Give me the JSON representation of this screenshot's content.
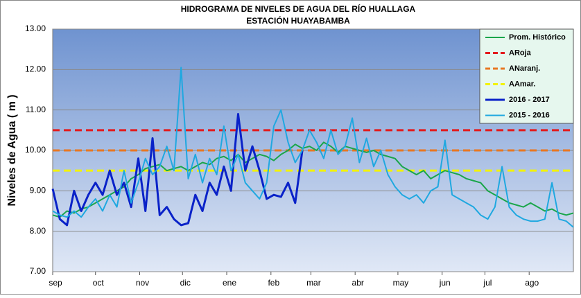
{
  "chart_data": {
    "type": "line",
    "title": "HIDROGRAMA DE NIVELES DE AGUA  DEL RÍO HUALLAGA",
    "subtitle": "ESTACIÓN HUAYABAMBA",
    "y_label": "Niveles de Agua  ( m )",
    "xlim": [
      0,
      365
    ],
    "xticks": [
      {
        "value": 0,
        "label": "sep"
      },
      {
        "value": 30,
        "label": "oct"
      },
      {
        "value": 61,
        "label": "nov"
      },
      {
        "value": 91,
        "label": "dic"
      },
      {
        "value": 122,
        "label": "ene"
      },
      {
        "value": 153,
        "label": "feb"
      },
      {
        "value": 181,
        "label": "mar"
      },
      {
        "value": 212,
        "label": "abr"
      },
      {
        "value": 242,
        "label": "may"
      },
      {
        "value": 273,
        "label": "jun"
      },
      {
        "value": 303,
        "label": "jul"
      },
      {
        "value": 334,
        "label": "ago"
      }
    ],
    "ylim": [
      7,
      13
    ],
    "yticks": [
      {
        "value": 7,
        "label": "7.00"
      },
      {
        "value": 8,
        "label": "8.00"
      },
      {
        "value": 9,
        "label": "9.00"
      },
      {
        "value": 10,
        "label": "10.00"
      },
      {
        "value": 11,
        "label": "11.00"
      },
      {
        "value": 12,
        "label": "12.00"
      },
      {
        "value": 13,
        "label": "13.00"
      }
    ],
    "grid": true,
    "legend": "top-right",
    "x": [
      0,
      5,
      10,
      15,
      20,
      25,
      30,
      35,
      40,
      45,
      50,
      55,
      60,
      65,
      70,
      75,
      80,
      85,
      90,
      95,
      100,
      105,
      110,
      115,
      120,
      125,
      130,
      135,
      140,
      145,
      150,
      155,
      160,
      165,
      170,
      175,
      180,
      185,
      190,
      195,
      200,
      205,
      210,
      215,
      220,
      225,
      230,
      235,
      240,
      245,
      250,
      255,
      260,
      265,
      270,
      275,
      280,
      285,
      290,
      295,
      300,
      305,
      310,
      315,
      320,
      325,
      330,
      335,
      340,
      345,
      350,
      355,
      360,
      365
    ],
    "thresholds": [
      {
        "name": "ARoja",
        "color": "#e31a1c",
        "value": 10.5
      },
      {
        "name": "ANaranj.",
        "color": "#e87722",
        "value": 10.0
      },
      {
        "name": "AAmar.",
        "color": "#f2f200",
        "value": 9.5
      }
    ],
    "series": [
      {
        "name": "Prom. Histórico",
        "color": "#1aa64a",
        "width": 2,
        "values": [
          8.4,
          8.35,
          8.5,
          8.45,
          8.55,
          8.6,
          8.7,
          8.8,
          8.9,
          9.0,
          9.1,
          9.3,
          9.4,
          9.55,
          9.6,
          9.65,
          9.5,
          9.55,
          9.6,
          9.5,
          9.6,
          9.7,
          9.65,
          9.8,
          9.85,
          9.75,
          9.9,
          9.7,
          9.8,
          9.9,
          9.85,
          9.75,
          9.9,
          10.0,
          10.15,
          10.05,
          10.1,
          10.0,
          10.2,
          10.1,
          9.95,
          10.1,
          10.05,
          10.0,
          9.95,
          10.0,
          9.9,
          9.85,
          9.8,
          9.6,
          9.5,
          9.4,
          9.5,
          9.3,
          9.4,
          9.5,
          9.45,
          9.4,
          9.3,
          9.25,
          9.2,
          9.0,
          8.9,
          8.8,
          8.7,
          8.65,
          8.6,
          8.7,
          8.6,
          8.5,
          8.55,
          8.45,
          8.4,
          8.45
        ]
      },
      {
        "name": "2016 - 2017",
        "color": "#0a22c8",
        "width": 3,
        "values": [
          9.05,
          8.3,
          8.15,
          9.0,
          8.5,
          8.9,
          9.2,
          8.9,
          9.5,
          8.9,
          9.2,
          8.6,
          9.8,
          8.5,
          10.3,
          8.4,
          8.6,
          8.3,
          8.15,
          8.2,
          8.9,
          8.5,
          9.2,
          8.9,
          9.6,
          9.0,
          10.9,
          9.5,
          10.1,
          9.5,
          8.8,
          8.9,
          8.85,
          9.2,
          8.7,
          10.0,
          null,
          null,
          null,
          null,
          null,
          null,
          null,
          null,
          null,
          null,
          null,
          null,
          null,
          null,
          null,
          null,
          null,
          null,
          null,
          null,
          null,
          null,
          null,
          null,
          null,
          null,
          null,
          null,
          null,
          null,
          null,
          null,
          null,
          null,
          null,
          null,
          null,
          null
        ]
      },
      {
        "name": "2015 - 2016",
        "color": "#1fa8e0",
        "width": 2,
        "values": [
          8.5,
          8.4,
          8.35,
          8.5,
          8.35,
          8.6,
          8.8,
          8.5,
          8.9,
          8.6,
          9.5,
          8.7,
          9.2,
          9.8,
          9.4,
          9.6,
          10.1,
          9.5,
          12.05,
          9.3,
          9.9,
          9.2,
          9.8,
          9.4,
          10.6,
          9.5,
          9.9,
          9.2,
          9.0,
          8.8,
          9.2,
          10.6,
          11.0,
          10.2,
          9.7,
          10.0,
          10.5,
          10.2,
          9.8,
          10.5,
          9.9,
          10.1,
          10.8,
          9.7,
          10.3,
          9.6,
          10.0,
          9.4,
          9.1,
          8.9,
          8.8,
          8.9,
          8.7,
          9.0,
          9.1,
          10.25,
          8.9,
          8.8,
          8.7,
          8.6,
          8.4,
          8.3,
          8.6,
          9.6,
          8.6,
          8.4,
          8.3,
          8.25,
          8.25,
          8.3,
          9.2,
          8.3,
          8.25,
          8.1
        ]
      }
    ]
  }
}
